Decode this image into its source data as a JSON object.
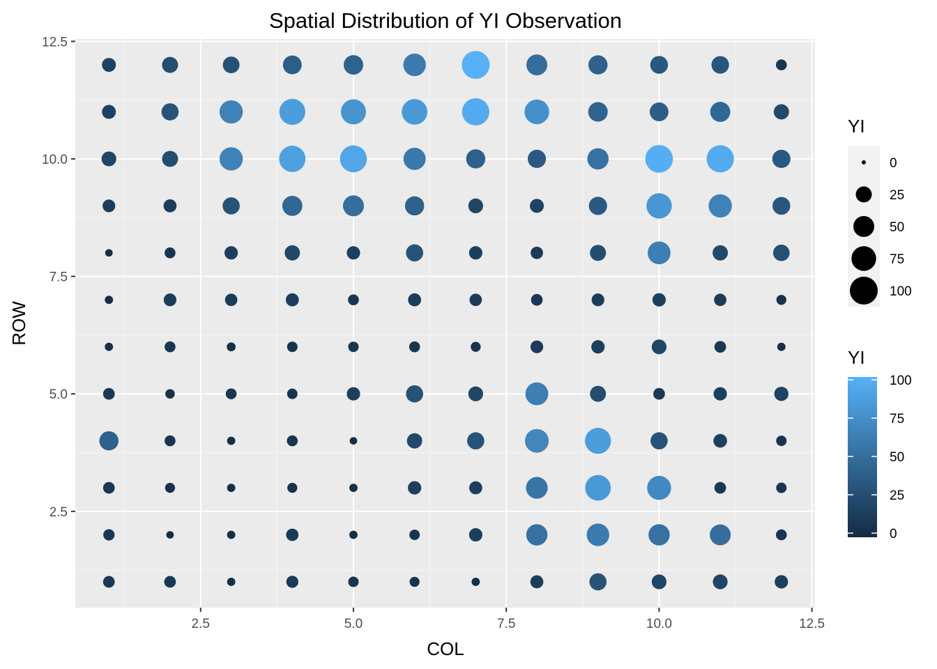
{
  "chart_data": {
    "type": "scatter",
    "title": "Spatial Distribution of YI Observation",
    "xlabel": "COL",
    "ylabel": "ROW",
    "xlim": [
      0.45,
      12.55
    ],
    "ylim": [
      0.45,
      12.55
    ],
    "x_ticks": [
      2.5,
      5.0,
      7.5,
      10.0,
      12.5
    ],
    "x_tick_labels": [
      "2.5",
      "5.0",
      "7.5",
      "10.0",
      "12.5"
    ],
    "y_ticks": [
      2.5,
      5.0,
      7.5,
      10.0,
      12.5
    ],
    "y_tick_labels": [
      "2.5",
      "5.0",
      "7.5",
      "10.0",
      "12.5"
    ],
    "grid": true,
    "value_name": "YI",
    "encoding": {
      "size": "YI",
      "color": "YI"
    },
    "color_low": "#132B43",
    "color_high": "#56B1F7",
    "value_range": [
      0,
      100
    ],
    "grid_rows": [
      12,
      11,
      10,
      9,
      8,
      7,
      6,
      5,
      4,
      3,
      2,
      1
    ],
    "grid_cols": [
      1,
      2,
      3,
      4,
      5,
      6,
      7,
      8,
      9,
      10,
      11,
      12
    ],
    "values": [
      [
        17,
        25,
        28,
        38,
        42,
        60,
        100,
        50,
        40,
        33,
        32,
        8
      ],
      [
        17,
        30,
        65,
        85,
        78,
        82,
        95,
        75,
        42,
        38,
        45,
        22
      ],
      [
        20,
        25,
        65,
        88,
        92,
        58,
        40,
        35,
        52,
        98,
        95,
        35
      ],
      [
        13,
        14,
        30,
        45,
        50,
        40,
        20,
        17,
        35,
        80,
        65,
        33
      ],
      [
        2,
        8,
        15,
        22,
        15,
        30,
        15,
        12,
        25,
        62,
        22,
        27
      ],
      [
        3,
        13,
        12,
        14,
        8,
        14,
        12,
        10,
        13,
        15,
        12,
        6
      ],
      [
        3,
        8,
        4,
        7,
        7,
        8,
        6,
        13,
        15,
        20,
        10,
        3
      ],
      [
        10,
        5,
        8,
        7,
        15,
        30,
        20,
        62,
        25,
        10,
        15,
        18
      ],
      [
        40,
        8,
        3,
        8,
        2,
        22,
        30,
        68,
        85,
        30,
        16,
        7
      ],
      [
        10,
        6,
        3,
        6,
        3,
        15,
        14,
        55,
        82,
        70,
        10,
        7
      ],
      [
        9,
        2,
        3,
        12,
        3,
        7,
        15,
        52,
        60,
        52,
        50,
        8
      ],
      [
        10,
        10,
        3,
        11,
        7,
        6,
        3,
        14,
        30,
        20,
        20,
        15
      ]
    ],
    "legends": [
      {
        "kind": "size",
        "title": "YI",
        "breaks": [
          0,
          25,
          50,
          75,
          100
        ],
        "labels": [
          "0",
          "25",
          "50",
          "75",
          "100"
        ]
      },
      {
        "kind": "color",
        "title": "YI",
        "breaks": [
          0,
          25,
          50,
          75,
          100
        ],
        "labels": [
          "0",
          "25",
          "50",
          "75",
          "100"
        ]
      }
    ],
    "legend_position": "right"
  }
}
